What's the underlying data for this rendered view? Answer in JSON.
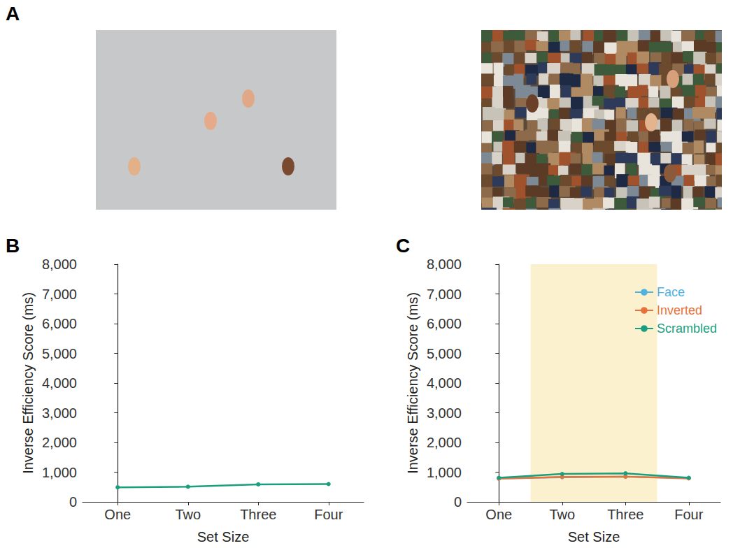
{
  "panel_a": {
    "panel": "A"
  },
  "chart_data": [
    {
      "panel": "B",
      "type": "line",
      "x_label": "Set Size",
      "y_label": "Inverse Efficiency Score (ms)",
      "categories": [
        "One",
        "Two",
        "Three",
        "Four"
      ],
      "values": [
        490,
        510,
        590,
        600
      ],
      "color": "#1b9e7e",
      "marker": "circle",
      "ylim": [
        0,
        8000
      ],
      "yticks": [
        0,
        1000,
        2000,
        3000,
        4000,
        5000,
        6000,
        7000,
        8000
      ],
      "grid": false
    },
    {
      "panel": "C",
      "type": "line",
      "x_label": "Set Size",
      "y_label": "Inverse Efficiency Score (ms)",
      "categories": [
        "One",
        "Two",
        "Three",
        "Four"
      ],
      "series": [
        {
          "name": "Face",
          "color": "#4fb3e0",
          "values": [
            790,
            830,
            850,
            800
          ]
        },
        {
          "name": "Inverted",
          "color": "#e8733a",
          "values": [
            780,
            840,
            850,
            790
          ]
        },
        {
          "name": "Scrambled",
          "color": "#1b9e7e",
          "values": [
            810,
            940,
            960,
            810
          ]
        }
      ],
      "marker": "circle",
      "legend": "top-right",
      "highlight": {
        "from": "Two",
        "to": "Three",
        "color": "#fbf1cf"
      },
      "ylim": [
        0,
        8000
      ],
      "yticks": [
        0,
        1000,
        2000,
        3000,
        4000,
        5000,
        6000,
        7000,
        8000
      ],
      "grid": false
    }
  ]
}
